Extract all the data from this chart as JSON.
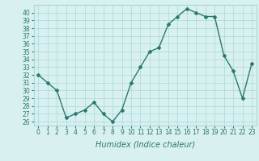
{
  "x": [
    0,
    1,
    2,
    3,
    4,
    5,
    6,
    7,
    8,
    9,
    10,
    11,
    12,
    13,
    14,
    15,
    16,
    17,
    18,
    19,
    20,
    21,
    22,
    23
  ],
  "y": [
    32,
    31,
    30,
    26.5,
    27,
    27.5,
    28.5,
    27,
    26,
    27.5,
    31,
    33,
    35,
    35.5,
    38.5,
    39.5,
    40.5,
    40,
    39.5,
    39.5,
    34.5,
    32.5,
    29,
    33.5
  ],
  "xlabel": "Humidex (Indice chaleur)",
  "xlabel_style": "italic",
  "bg_color": "#d8f0f0",
  "grid_color": "#a8d8d8",
  "line_color": "#2d7a6a",
  "marker": "D",
  "marker_size": 2,
  "line_width": 1.0,
  "ylim": [
    25.5,
    41
  ],
  "yticks": [
    26,
    27,
    28,
    29,
    30,
    31,
    32,
    33,
    34,
    35,
    36,
    37,
    38,
    39,
    40
  ],
  "xticks": [
    0,
    1,
    2,
    3,
    4,
    5,
    6,
    7,
    8,
    9,
    10,
    11,
    12,
    13,
    14,
    15,
    16,
    17,
    18,
    19,
    20,
    21,
    22,
    23
  ],
  "tick_label_size": 5.5,
  "xlabel_size": 7.0
}
